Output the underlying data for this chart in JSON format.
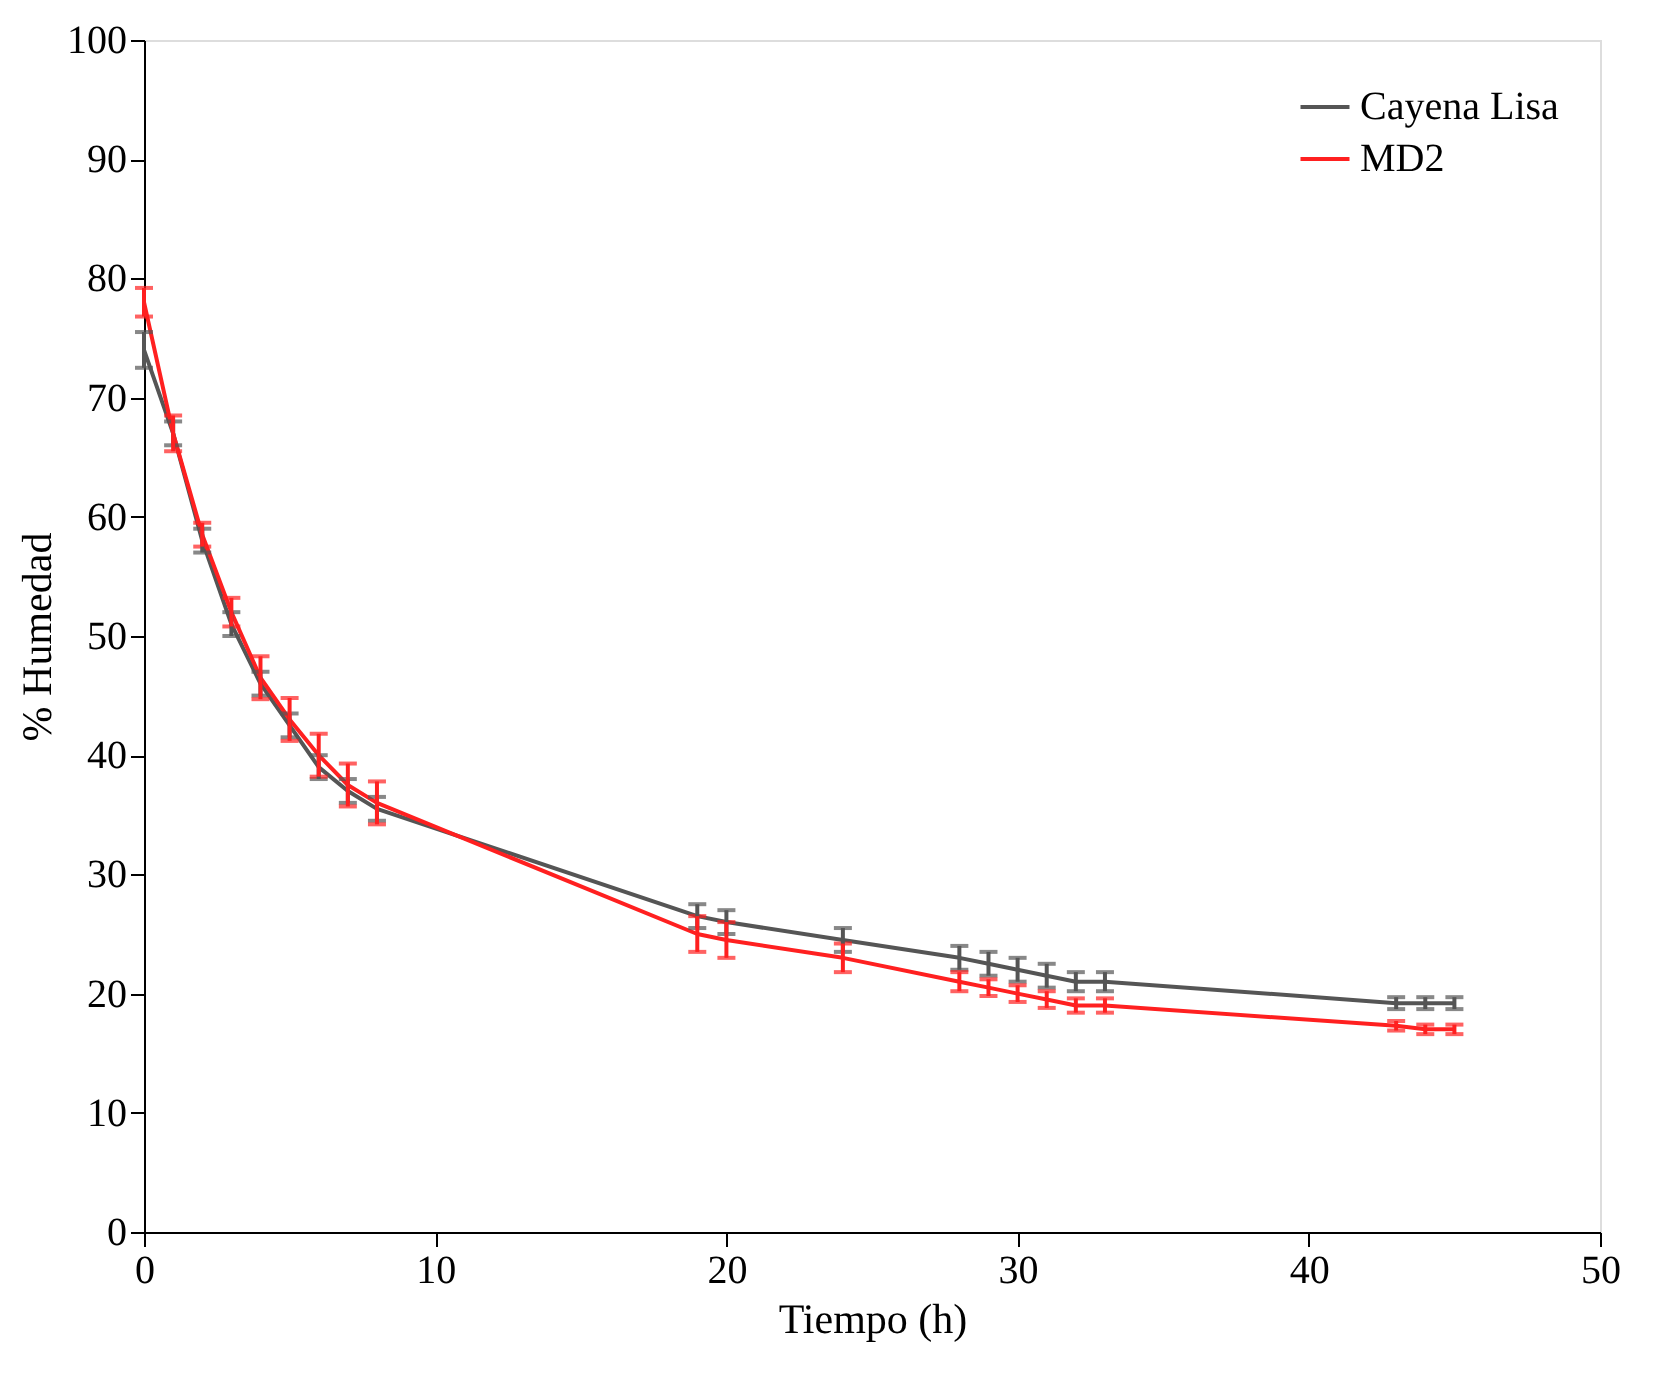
{
  "chart_data": {
    "type": "line",
    "xlabel": "Tiempo (h)",
    "ylabel": "% Humedad",
    "x": [
      0,
      1,
      2,
      3,
      4,
      5,
      6,
      7,
      8,
      19,
      20,
      24,
      28,
      29,
      30,
      31,
      32,
      33,
      43,
      44,
      45
    ],
    "xlim": [
      0,
      50
    ],
    "xticks": [
      0,
      10,
      20,
      30,
      40,
      50
    ],
    "ylim": [
      0,
      100
    ],
    "yticks": [
      0,
      10,
      20,
      30,
      40,
      50,
      60,
      70,
      80,
      90,
      100
    ],
    "grid": false,
    "legend": "top right",
    "marker": "none",
    "line_style": "solid",
    "series": [
      {
        "name": "Cayena Lisa",
        "color": "#555555",
        "values": [
          74,
          67,
          58,
          51,
          46,
          42.5,
          39,
          37,
          35.5,
          26.5,
          26,
          24.5,
          23,
          22.5,
          22,
          21.5,
          21,
          21,
          19.2,
          19.2,
          19.2
        ],
        "errors": [
          1.5,
          1,
          1,
          1,
          1,
          1,
          1,
          1,
          1,
          1,
          1,
          1,
          1,
          1,
          1,
          1,
          0.8,
          0.8,
          0.5,
          0.5,
          0.5
        ]
      },
      {
        "name": "MD2",
        "color": "#ff2020",
        "values": [
          78,
          67,
          58.5,
          52,
          46.5,
          43,
          40,
          37.5,
          36,
          25,
          24.5,
          23,
          21,
          20.5,
          20,
          19.5,
          19,
          19,
          17.3,
          17,
          17
        ],
        "errors": [
          1.2,
          1.5,
          1,
          1.2,
          1.8,
          1.8,
          1.8,
          1.8,
          1.8,
          1.5,
          1.5,
          1.2,
          0.8,
          0.7,
          0.7,
          0.7,
          0.6,
          0.6,
          0.4,
          0.4,
          0.4
        ]
      }
    ]
  }
}
